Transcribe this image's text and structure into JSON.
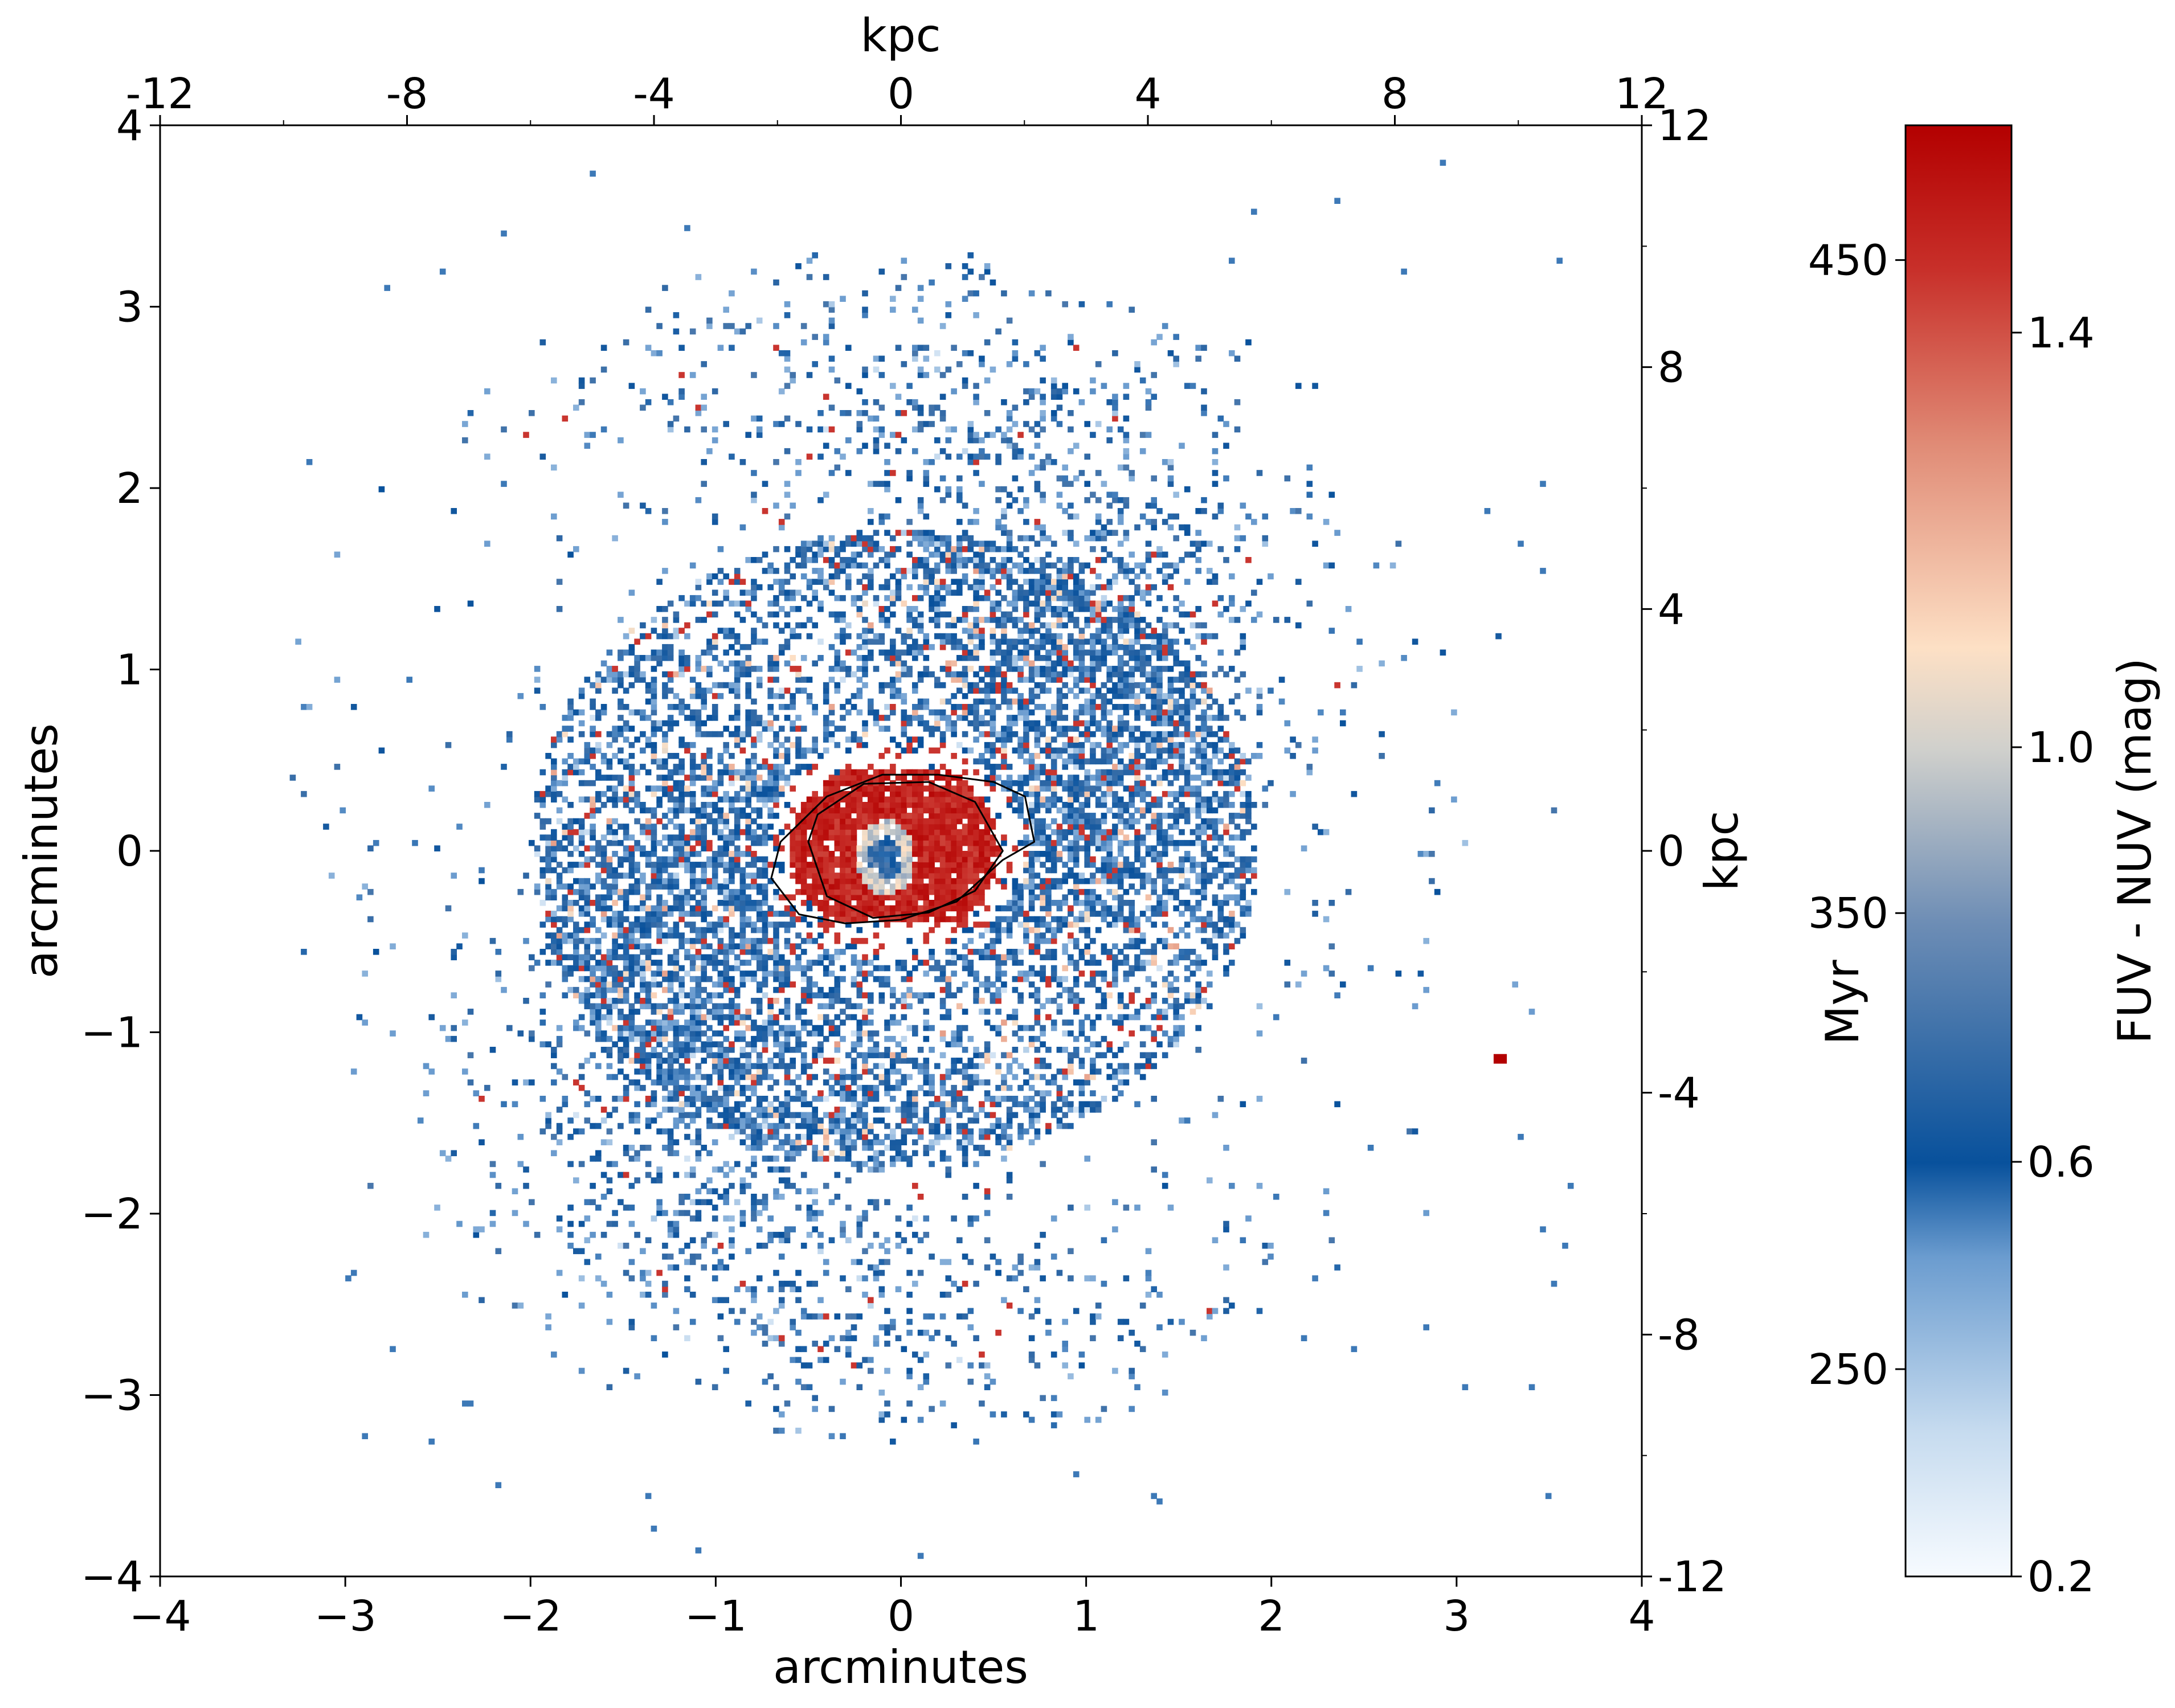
{
  "chart_data": {
    "type": "heatmap",
    "title": "",
    "xlabel": "arcminutes",
    "ylabel": "arcminutes",
    "xlim": [
      -4,
      4
    ],
    "ylim": [
      -4,
      4
    ],
    "xticks": [
      -4,
      -3,
      -2,
      -1,
      0,
      1,
      2,
      3,
      4
    ],
    "xtick_labels": [
      "−4",
      "−3",
      "−2",
      "−1",
      "0",
      "1",
      "2",
      "3",
      "4"
    ],
    "yticks": [
      -4,
      -3,
      -2,
      -1,
      0,
      1,
      2,
      3,
      4
    ],
    "ytick_labels": [
      "−4",
      "−3",
      "−2",
      "−1",
      "0",
      "1",
      "2",
      "3",
      "4"
    ],
    "top_axis": {
      "label": "kpc",
      "lim": [
        -12,
        12
      ],
      "ticks": [
        -12,
        -8,
        -4,
        0,
        4,
        8,
        12
      ],
      "tick_labels": [
        "-12",
        "-8",
        "-4",
        "0",
        "4",
        "8",
        "12"
      ]
    },
    "right_axis": {
      "label": "kpc",
      "lim": [
        -12,
        12
      ],
      "ticks": [
        12,
        8,
        4,
        0,
        -4,
        -8,
        -12
      ],
      "tick_labels": [
        "12",
        "8",
        "4",
        "0",
        "-4",
        "-8",
        "-12"
      ]
    },
    "colorbar": {
      "label": "FUV - NUV (mag)",
      "lim": [
        0.2,
        1.6
      ],
      "ticks": [
        1.4,
        1.0,
        0.6,
        0.2
      ],
      "tick_labels": [
        "1.4",
        "1.0",
        "0.6",
        "0.2"
      ],
      "colormap": [
        "#f7fbff",
        "#c6dbef",
        "#6b9ccf",
        "#08519c",
        "#6d8db5",
        "#d0d0cc",
        "#fde0c5",
        "#e08b76",
        "#c8302a",
        "#b30000"
      ],
      "secondary_label": "Myr",
      "secondary_ticks": [
        450,
        350,
        250
      ],
      "secondary_tick_labels": [
        "450",
        "350",
        "250"
      ],
      "secondary_tick_positions_mag": [
        1.47,
        0.84,
        0.4
      ]
    },
    "map_description_values": {
      "bulge_center": [
        -0.05,
        0.0
      ],
      "bulge_color_mag": 1.5,
      "disk_color_mag": 0.62,
      "isolated_red_source": [
        3.23,
        -1.15
      ]
    },
    "contours": [
      {
        "level": "outer",
        "points": [
          [
            -0.7,
            -0.15
          ],
          [
            -0.55,
            -0.35
          ],
          [
            -0.3,
            -0.4
          ],
          [
            0.0,
            -0.38
          ],
          [
            0.3,
            -0.28
          ],
          [
            0.55,
            -0.05
          ],
          [
            0.72,
            0.05
          ],
          [
            0.67,
            0.3
          ],
          [
            0.5,
            0.38
          ],
          [
            0.2,
            0.42
          ],
          [
            -0.1,
            0.42
          ],
          [
            -0.4,
            0.3
          ],
          [
            -0.65,
            0.05
          ]
        ]
      },
      {
        "level": "inner",
        "points": [
          [
            -0.5,
            0.05
          ],
          [
            -0.4,
            -0.25
          ],
          [
            -0.15,
            -0.37
          ],
          [
            0.15,
            -0.34
          ],
          [
            0.4,
            -0.22
          ],
          [
            0.55,
            0.0
          ],
          [
            0.4,
            0.27
          ],
          [
            0.15,
            0.38
          ],
          [
            -0.2,
            0.37
          ],
          [
            -0.45,
            0.2
          ]
        ]
      }
    ]
  }
}
